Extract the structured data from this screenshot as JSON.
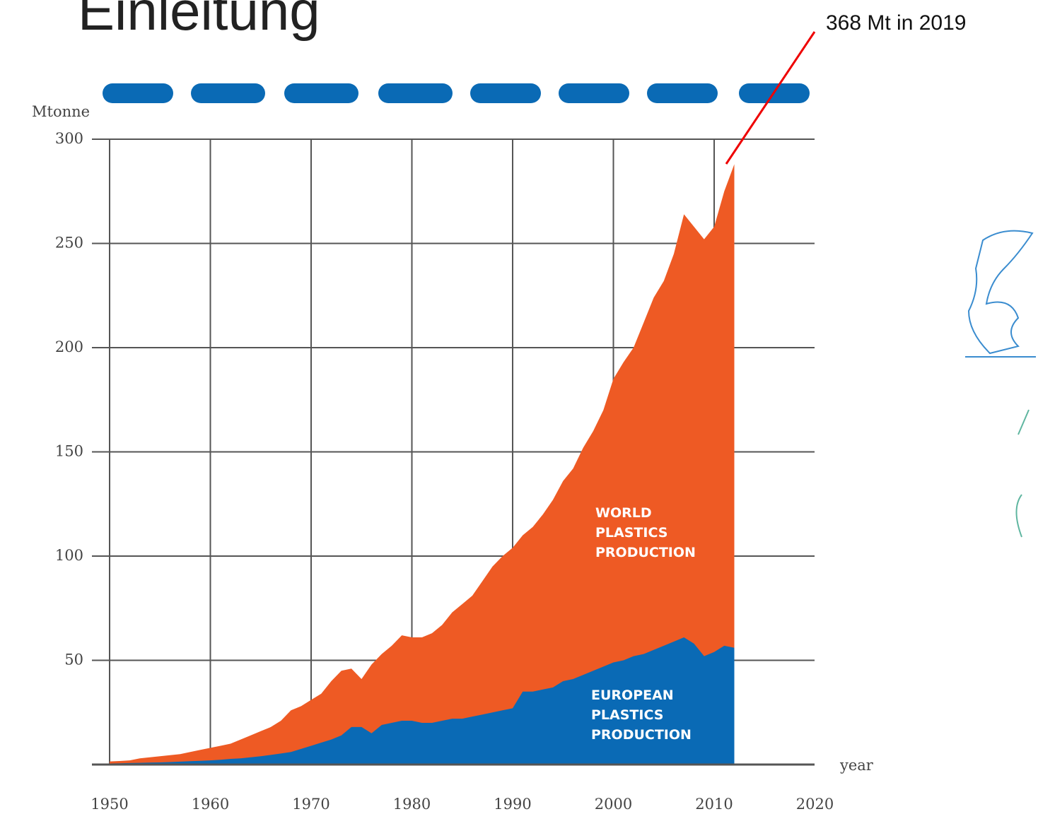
{
  "slide_title": "Einleitung",
  "annotation": "368 Mt in 2019",
  "chart_data": {
    "type": "area",
    "y_label": "Mtonne",
    "x_label": "year",
    "x": [
      1950,
      1951,
      1952,
      1953,
      1954,
      1955,
      1956,
      1957,
      1958,
      1959,
      1960,
      1961,
      1962,
      1963,
      1964,
      1965,
      1966,
      1967,
      1968,
      1969,
      1970,
      1971,
      1972,
      1973,
      1974,
      1975,
      1976,
      1977,
      1978,
      1979,
      1980,
      1981,
      1982,
      1983,
      1984,
      1985,
      1986,
      1987,
      1988,
      1989,
      1990,
      1991,
      1992,
      1993,
      1994,
      1995,
      1996,
      1997,
      1998,
      1999,
      2000,
      2001,
      2002,
      2003,
      2004,
      2005,
      2006,
      2007,
      2008,
      2009,
      2010,
      2011,
      2012
    ],
    "series": [
      {
        "name": "WORLD PLASTICS PRODUCTION",
        "color": "#ee5a24",
        "values": [
          1.5,
          1.7,
          2,
          3,
          3.5,
          4,
          4.5,
          5,
          6,
          7,
          8,
          9,
          10,
          12,
          14,
          16,
          18,
          21,
          26,
          28,
          31,
          34,
          40,
          45,
          46,
          41,
          48,
          53,
          57,
          62,
          61,
          61,
          63,
          67,
          73,
          77,
          81,
          88,
          95,
          100,
          104,
          110,
          114,
          120,
          127,
          136,
          142,
          152,
          160,
          170,
          185,
          193,
          200,
          212,
          224,
          232,
          245,
          264,
          258,
          252,
          258,
          275,
          288
        ]
      },
      {
        "name": "EUROPEAN PLASTICS PRODUCTION",
        "color": "#0a6ab5",
        "values": [
          0.5,
          0.6,
          0.7,
          0.8,
          0.9,
          1,
          1.2,
          1.4,
          1.6,
          1.8,
          2,
          2.3,
          2.7,
          3,
          3.5,
          4,
          4.6,
          5.3,
          6,
          7.5,
          9,
          10.5,
          12,
          14,
          18,
          18,
          15,
          19,
          20,
          21,
          21,
          20,
          20,
          21,
          22,
          22,
          23,
          24,
          25,
          26,
          27,
          35,
          35,
          36,
          37,
          40,
          41,
          43,
          45,
          47,
          49,
          50,
          52,
          53,
          55,
          57,
          59,
          61,
          58,
          52,
          54,
          57,
          56
        ]
      }
    ],
    "xlim": [
      1950,
      2020
    ],
    "xticks": [
      1950,
      1960,
      1970,
      1980,
      1990,
      2000,
      2010,
      2020
    ],
    "ylim": [
      0,
      300
    ],
    "yticks": [
      50,
      100,
      150,
      200,
      250,
      300
    ],
    "grid": true
  }
}
